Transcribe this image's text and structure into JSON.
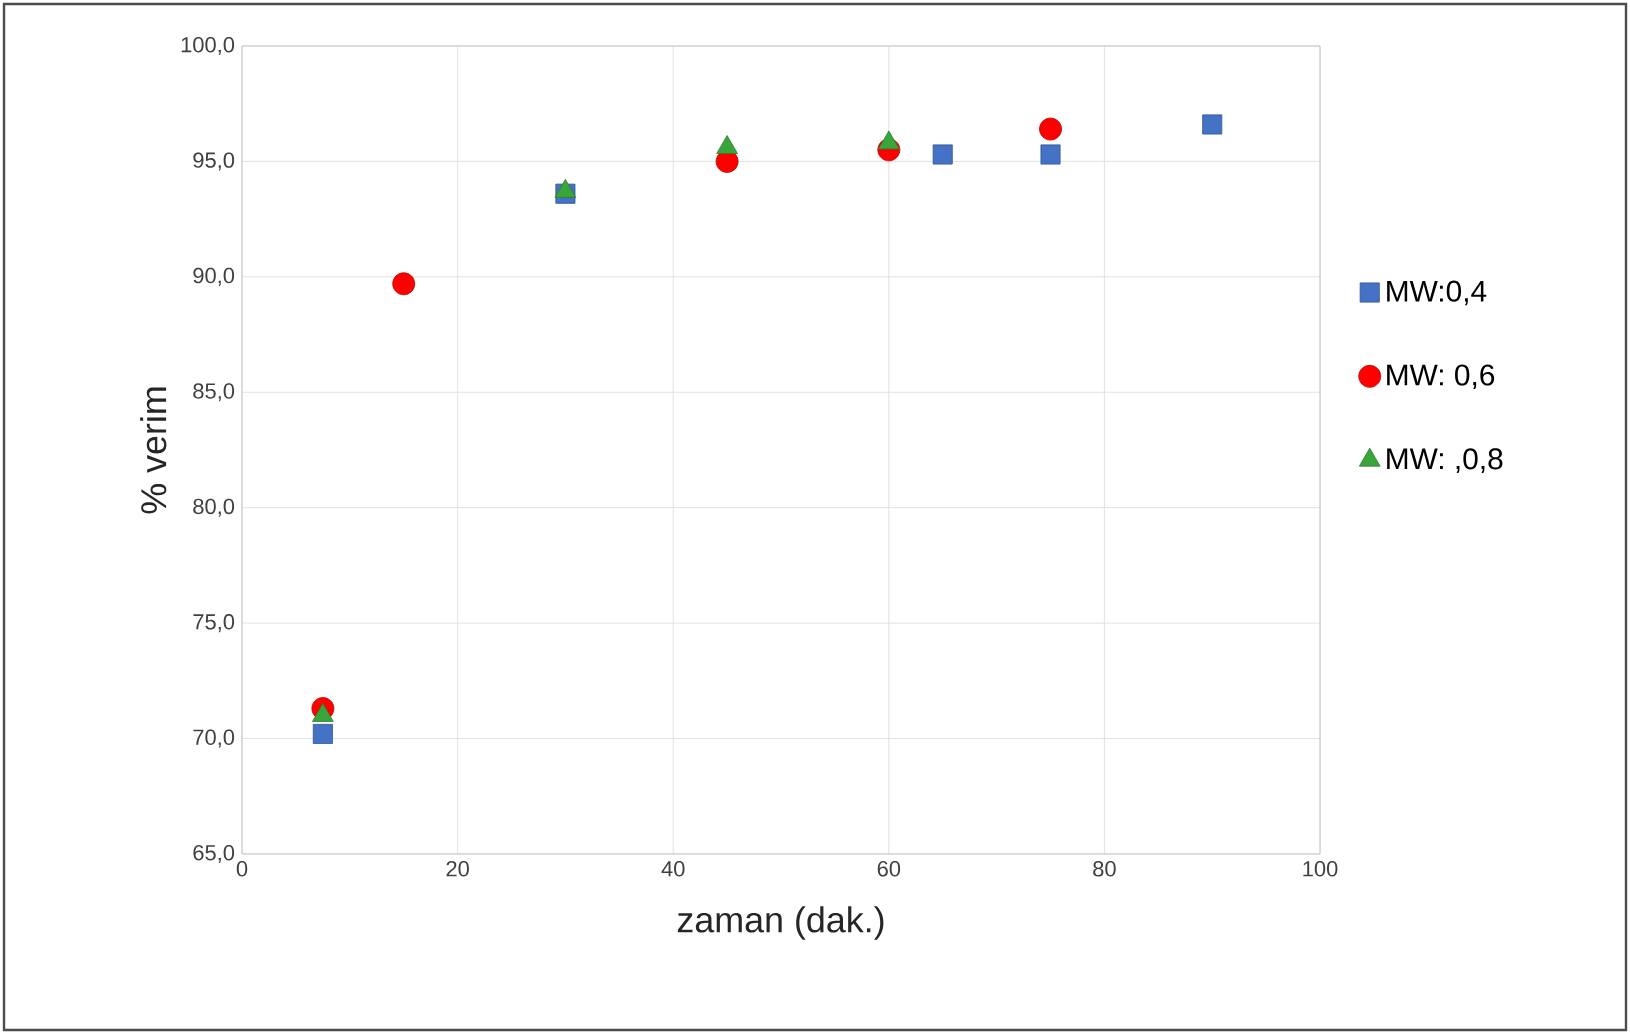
{
  "chart_data": {
    "type": "scatter",
    "xlabel": "zaman (dak.)",
    "ylabel": "% verim",
    "xlim": [
      0,
      100
    ],
    "xticks": [
      0,
      20,
      40,
      60,
      80,
      100
    ],
    "ylim": [
      65,
      100
    ],
    "yticks": [
      {
        "value": 65,
        "label": "65,0"
      },
      {
        "value": 70,
        "label": "70,0"
      },
      {
        "value": 75,
        "label": "75,0"
      },
      {
        "value": 80,
        "label": "80,0"
      },
      {
        "value": 85,
        "label": "85,0"
      },
      {
        "value": 90,
        "label": "90,0"
      },
      {
        "value": 95,
        "label": "95,0"
      },
      {
        "value": 100,
        "label": "100,0"
      }
    ],
    "grid": true,
    "legend": "right",
    "series": [
      {
        "name": "MW:0,4",
        "color": "#4472c4",
        "marker": "square",
        "x": [
          7.5,
          30,
          65,
          75,
          90
        ],
        "values": [
          70.2,
          93.6,
          95.3,
          95.3,
          96.6
        ]
      },
      {
        "name": "MW: 0,6",
        "color": "#ff0000",
        "marker": "circle",
        "x": [
          7.5,
          15,
          45,
          60,
          75
        ],
        "values": [
          71.3,
          89.7,
          95.0,
          95.5,
          96.4
        ]
      },
      {
        "name": "MW: ,0,8",
        "color": "#3aa53a",
        "marker": "triangle",
        "x": [
          7.5,
          30,
          45,
          60
        ],
        "values": [
          71.0,
          93.7,
          95.6,
          95.8
        ]
      }
    ]
  }
}
